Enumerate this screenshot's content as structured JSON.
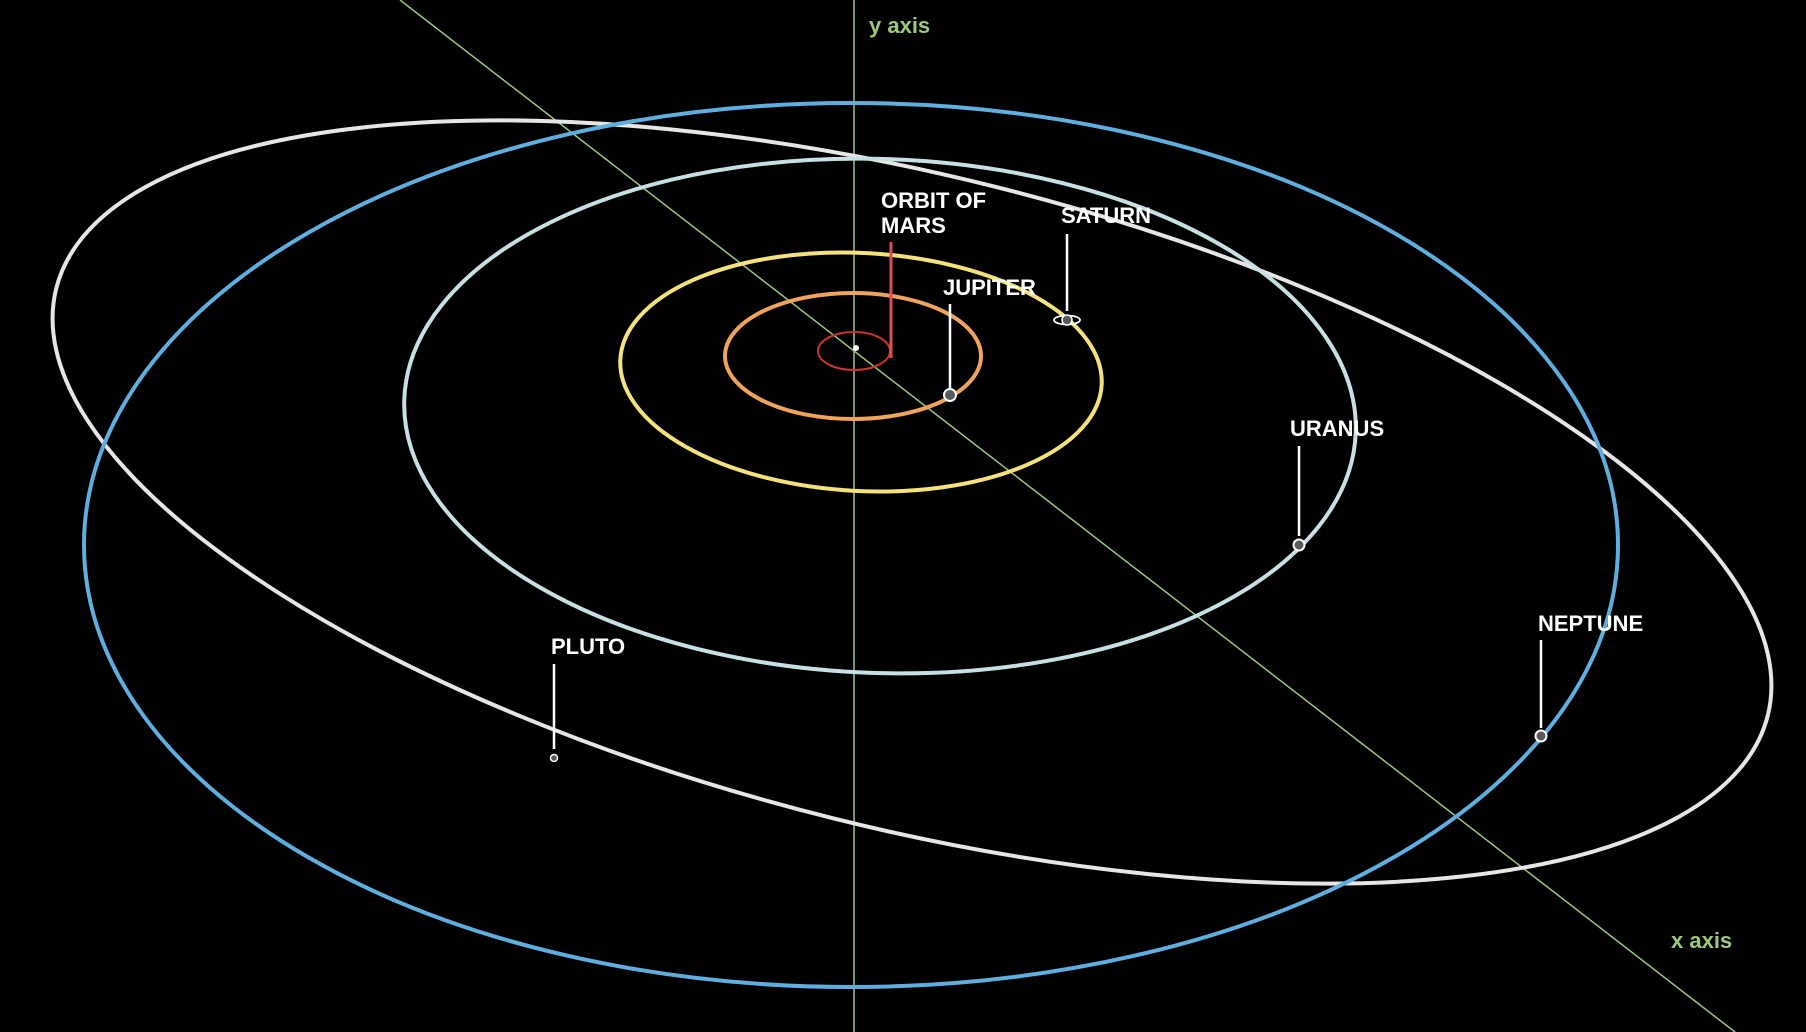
{
  "colors": {
    "background": "#000000",
    "axis": "#9cc97a",
    "label": "#ffffff",
    "mars_orbit": "#c8342c",
    "mars_leader": "#d8505a",
    "jupiter_orbit": "#f0a35a",
    "saturn_orbit": "#f5e27a",
    "uranus_orbit": "#c6e0e4",
    "neptune_orbit": "#5eaee0",
    "pluto_orbit": "#e6e6e6",
    "planet_fill": "#5a5a5a",
    "planet_stroke": "#ffffff"
  },
  "axes": {
    "y_label": "y axis",
    "x_label": "x axis"
  },
  "labels": {
    "mars_line1": "ORBIT OF",
    "mars_line2": "MARS",
    "jupiter": "JUPITER",
    "saturn": "SATURN",
    "uranus": "URANUS",
    "neptune": "NEPTUNE",
    "pluto": "PLUTO"
  }
}
